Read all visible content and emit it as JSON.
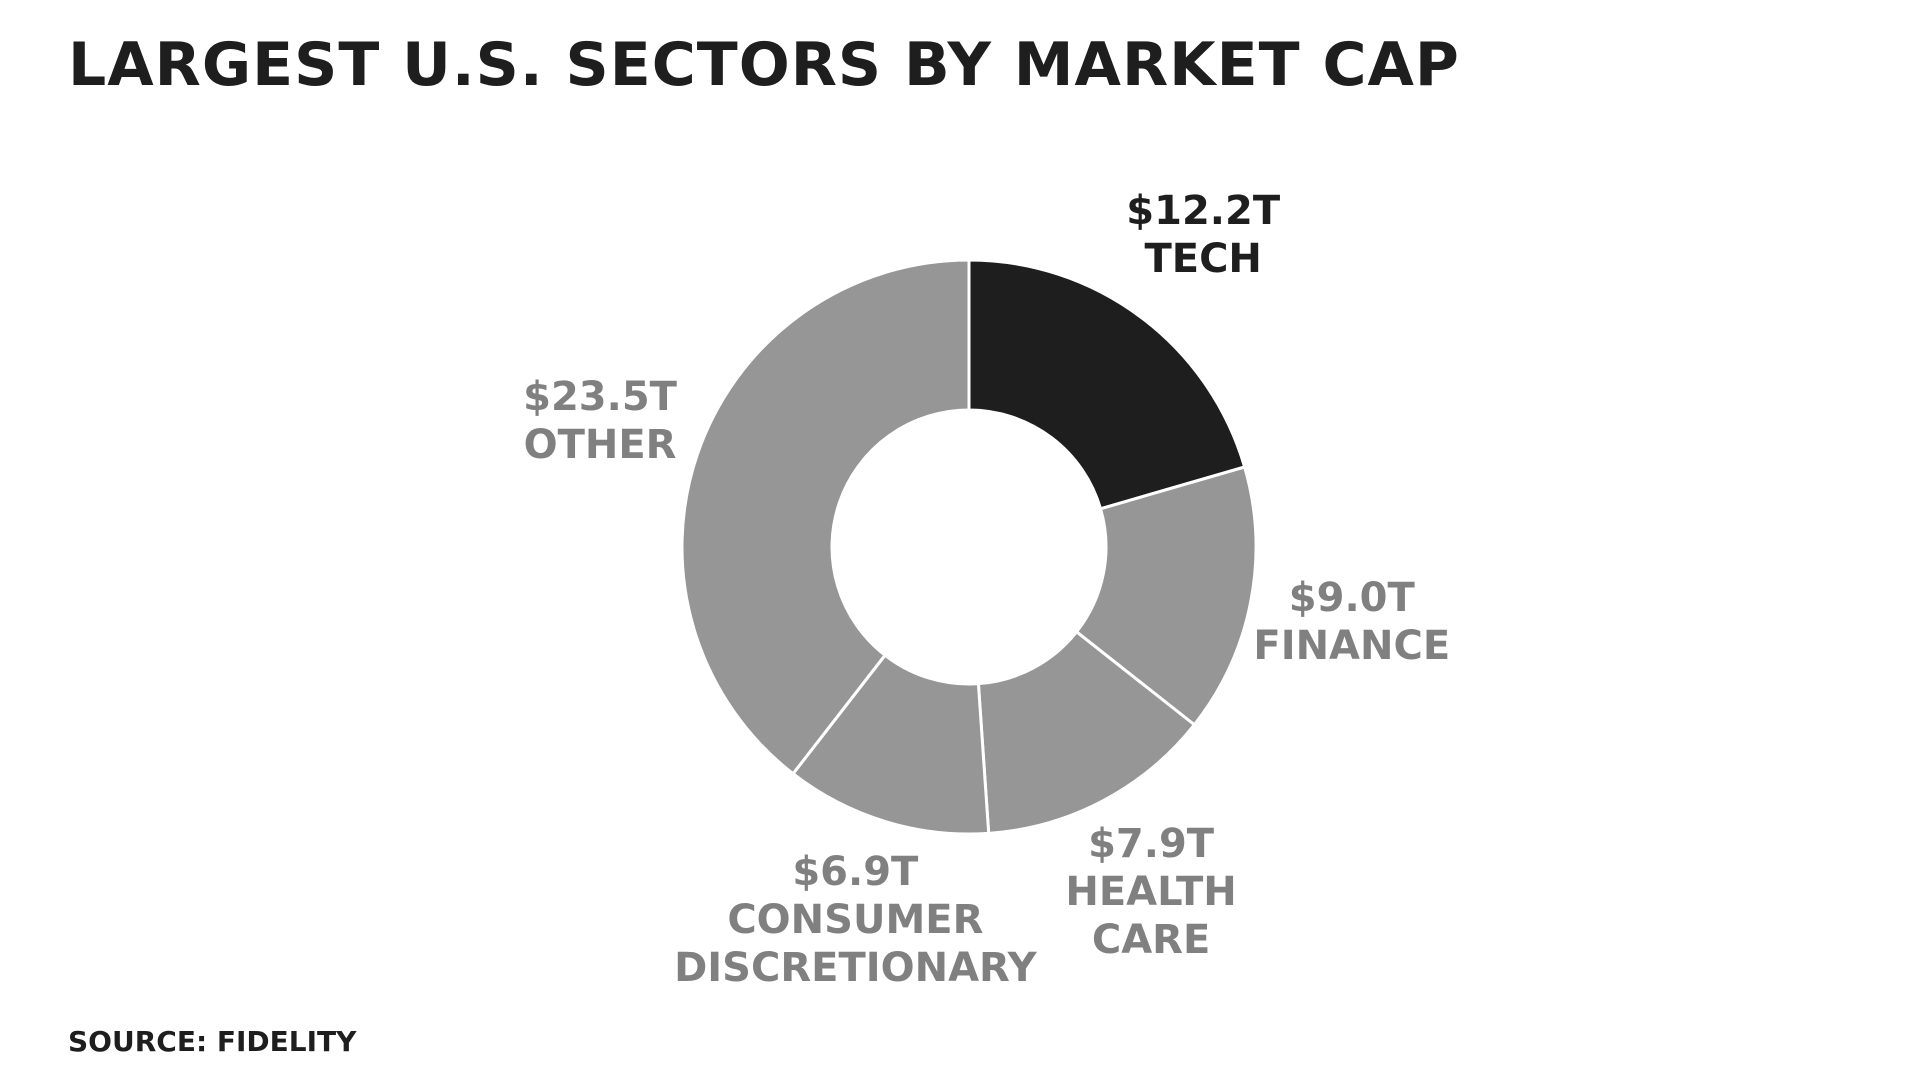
{
  "chart_data": {
    "type": "donut",
    "title": "LARGEST U.S. SECTORS BY MARKET CAP",
    "categories": [
      "TECH",
      "FINANCE",
      "HEALTH CARE",
      "CONSUMER DISCRETIONARY",
      "OTHER"
    ],
    "values": [
      12.2,
      9.0,
      7.9,
      6.9,
      23.5
    ],
    "value_labels": [
      "$12.2T",
      "$9.0T",
      "$7.9T",
      "$6.9T",
      "$23.5T"
    ],
    "colors": [
      "#1e1e1e",
      "#969696",
      "#969696",
      "#969696",
      "#969696"
    ],
    "source": "SOURCE: FIDELITY"
  }
}
